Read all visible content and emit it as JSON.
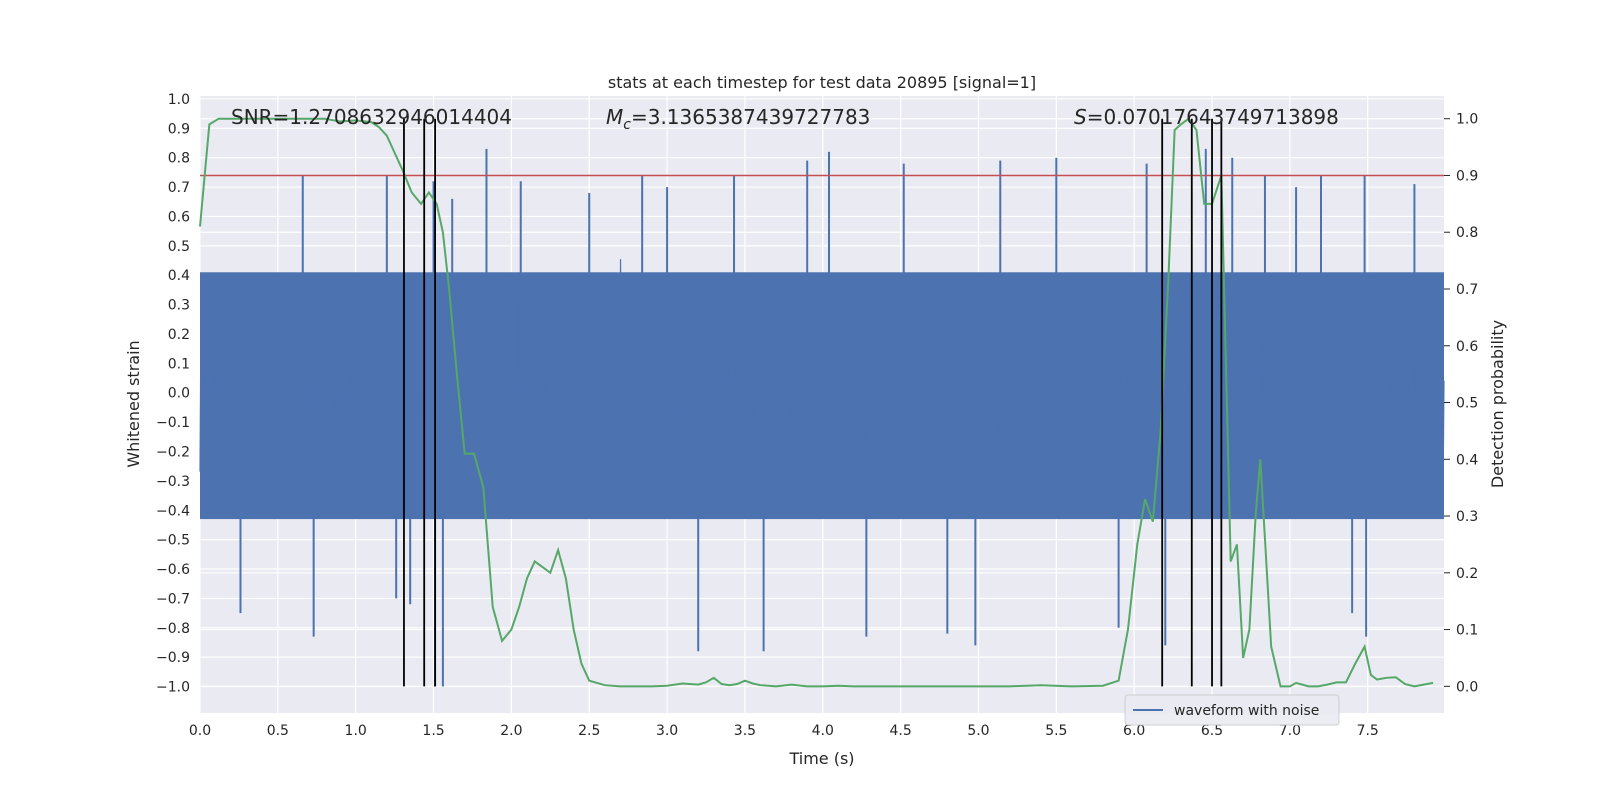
{
  "chart_data": {
    "type": "line",
    "title": "stats at each timestep for test data 20895 [signal=1]",
    "xlabel": "Time (s)",
    "ylabel": "Whitened strain",
    "y2label": "Detection probability",
    "xlim": [
      0,
      7.99
    ],
    "ylim": [
      -1.09,
      1.01
    ],
    "y2lim": [
      -0.047,
      1.04
    ],
    "xticks": [
      0.0,
      0.5,
      1.0,
      1.5,
      2.0,
      2.5,
      3.0,
      3.5,
      4.0,
      4.5,
      5.0,
      5.5,
      6.0,
      6.5,
      7.0,
      7.5
    ],
    "xtick_labels": [
      "0.0",
      "0.5",
      "1.0",
      "1.5",
      "2.0",
      "2.5",
      "3.0",
      "3.5",
      "4.0",
      "4.5",
      "5.0",
      "5.5",
      "6.0",
      "6.5",
      "7.0",
      "7.5"
    ],
    "yticks": [
      1.0,
      0.9,
      0.8,
      0.7,
      0.6,
      0.5,
      0.4,
      0.3,
      0.2,
      0.1,
      0.0,
      -0.1,
      -0.2,
      -0.3,
      -0.4,
      -0.5,
      -0.6,
      -0.7,
      -0.8,
      -0.9,
      -1.0
    ],
    "ytick_labels": [
      "1.0",
      "0.9",
      "0.8",
      "0.7",
      "0.6",
      "0.5",
      "0.4",
      "0.3",
      "0.2",
      "0.1",
      "0.0",
      "−0.1",
      "−0.2",
      "−0.3",
      "−0.4",
      "−0.5",
      "−0.6",
      "−0.7",
      "−0.8",
      "−0.9",
      "−1.0"
    ],
    "y2ticks": [
      1.0,
      0.9,
      0.8,
      0.7,
      0.6,
      0.5,
      0.4,
      0.3,
      0.2,
      0.1,
      0.0
    ],
    "y2tick_labels": [
      "1.0",
      "0.9",
      "0.8",
      "0.7",
      "0.6",
      "0.5",
      "0.4",
      "0.3",
      "0.2",
      "0.1",
      "0.0"
    ],
    "grid": true,
    "legend": {
      "location": "lower-right",
      "entries": [
        "waveform with noise"
      ]
    },
    "annotations": {
      "snr": "SNR=1.2708632946014404",
      "mc_symbol": "M",
      "mc_sub": "c",
      "mc_value": "=3.1365387439727783",
      "s_symbol": "S",
      "s_value": "=0.07017643749713898"
    },
    "threshold": {
      "axis": "y2",
      "value": 0.9,
      "color": "#c44e52"
    },
    "vlines_x": [
      1.31,
      1.44,
      1.51,
      6.18,
      6.37,
      6.5,
      6.56
    ],
    "waveform": {
      "name": "waveform with noise",
      "color": "#4c72b0",
      "x_range": [
        0,
        7.99
      ],
      "samples": 2048,
      "envelope_pos": 0.41,
      "envelope_neg": -0.43,
      "peaks": [
        {
          "x": 0.66,
          "y": 0.74
        },
        {
          "x": 0.73,
          "y": -0.83
        },
        {
          "x": 0.26,
          "y": -0.75
        },
        {
          "x": 1.2,
          "y": 0.74
        },
        {
          "x": 1.26,
          "y": -0.7
        },
        {
          "x": 1.35,
          "y": -0.72
        },
        {
          "x": 1.51,
          "y": -1.0
        },
        {
          "x": 1.56,
          "y": -1.0
        },
        {
          "x": 1.5,
          "y": 0.72
        },
        {
          "x": 1.62,
          "y": 0.66
        },
        {
          "x": 1.84,
          "y": 0.83
        },
        {
          "x": 2.06,
          "y": 0.72
        },
        {
          "x": 2.5,
          "y": 0.68
        },
        {
          "x": 2.84,
          "y": 0.74
        },
        {
          "x": 3.0,
          "y": 0.7
        },
        {
          "x": 3.2,
          "y": -0.88
        },
        {
          "x": 3.43,
          "y": 0.74
        },
        {
          "x": 3.62,
          "y": -0.88
        },
        {
          "x": 3.9,
          "y": 0.79
        },
        {
          "x": 4.04,
          "y": 0.82
        },
        {
          "x": 4.28,
          "y": -0.83
        },
        {
          "x": 4.52,
          "y": 0.78
        },
        {
          "x": 4.8,
          "y": -0.82
        },
        {
          "x": 4.98,
          "y": -0.86
        },
        {
          "x": 5.14,
          "y": 0.79
        },
        {
          "x": 5.5,
          "y": 0.8
        },
        {
          "x": 5.9,
          "y": -0.8
        },
        {
          "x": 6.08,
          "y": 0.78
        },
        {
          "x": 6.2,
          "y": -0.86
        },
        {
          "x": 6.46,
          "y": 0.83
        },
        {
          "x": 6.63,
          "y": 0.8
        },
        {
          "x": 6.84,
          "y": 0.74
        },
        {
          "x": 7.04,
          "y": 0.7
        },
        {
          "x": 7.2,
          "y": 0.74
        },
        {
          "x": 7.4,
          "y": -0.75
        },
        {
          "x": 7.48,
          "y": 0.74
        },
        {
          "x": 7.49,
          "y": -0.83
        },
        {
          "x": 7.8,
          "y": 0.71
        }
      ]
    },
    "probability": {
      "axis": "y2",
      "color": "#55a868",
      "x": [
        0.0,
        0.06,
        0.12,
        0.2,
        0.3,
        0.4,
        0.5,
        0.6,
        0.7,
        0.8,
        0.9,
        1.0,
        1.1,
        1.15,
        1.2,
        1.25,
        1.3,
        1.36,
        1.42,
        1.47,
        1.52,
        1.56,
        1.6,
        1.65,
        1.7,
        1.76,
        1.82,
        1.88,
        1.94,
        2.0,
        2.05,
        2.1,
        2.15,
        2.2,
        2.25,
        2.3,
        2.35,
        2.4,
        2.45,
        2.5,
        2.6,
        2.7,
        2.8,
        2.9,
        3.0,
        3.1,
        3.2,
        3.25,
        3.3,
        3.35,
        3.4,
        3.45,
        3.5,
        3.55,
        3.6,
        3.7,
        3.8,
        3.9,
        4.0,
        4.1,
        4.2,
        4.4,
        4.6,
        4.8,
        5.0,
        5.2,
        5.4,
        5.6,
        5.8,
        5.9,
        5.96,
        6.02,
        6.07,
        6.12,
        6.17,
        6.22,
        6.26,
        6.3,
        6.35,
        6.4,
        6.45,
        6.5,
        6.56,
        6.62,
        6.66,
        6.7,
        6.74,
        6.78,
        6.81,
        6.84,
        6.88,
        6.94,
        7.0,
        7.04,
        7.08,
        7.12,
        7.18,
        7.24,
        7.3,
        7.36,
        7.42,
        7.48,
        7.52,
        7.56,
        7.62,
        7.68,
        7.74,
        7.8,
        7.86,
        7.92
      ],
      "y": [
        0.81,
        0.99,
        1.0,
        1.0,
        1.0,
        1.0,
        1.0,
        1.0,
        1.0,
        1.0,
        0.995,
        0.997,
        0.994,
        0.985,
        0.97,
        0.94,
        0.91,
        0.87,
        0.85,
        0.87,
        0.85,
        0.8,
        0.7,
        0.55,
        0.41,
        0.41,
        0.35,
        0.14,
        0.08,
        0.1,
        0.14,
        0.19,
        0.22,
        0.21,
        0.2,
        0.24,
        0.19,
        0.1,
        0.04,
        0.01,
        0.002,
        0.0,
        0.0,
        0.0,
        0.001,
        0.005,
        0.003,
        0.007,
        0.015,
        0.004,
        0.002,
        0.004,
        0.01,
        0.005,
        0.002,
        0.0,
        0.003,
        0.0,
        0.0,
        0.001,
        0.0,
        0.0,
        0.0,
        0.0,
        0.0,
        0.0,
        0.002,
        0.0,
        0.001,
        0.01,
        0.1,
        0.25,
        0.33,
        0.29,
        0.45,
        0.72,
        0.98,
        0.99,
        1.0,
        0.98,
        0.85,
        0.85,
        0.9,
        0.22,
        0.25,
        0.05,
        0.1,
        0.3,
        0.4,
        0.26,
        0.07,
        0.0,
        0.0,
        0.006,
        0.003,
        0.0,
        0.0,
        0.003,
        0.007,
        0.007,
        0.04,
        0.07,
        0.02,
        0.012,
        0.015,
        0.016,
        0.004,
        0.0,
        0.003,
        0.006
      ]
    }
  }
}
